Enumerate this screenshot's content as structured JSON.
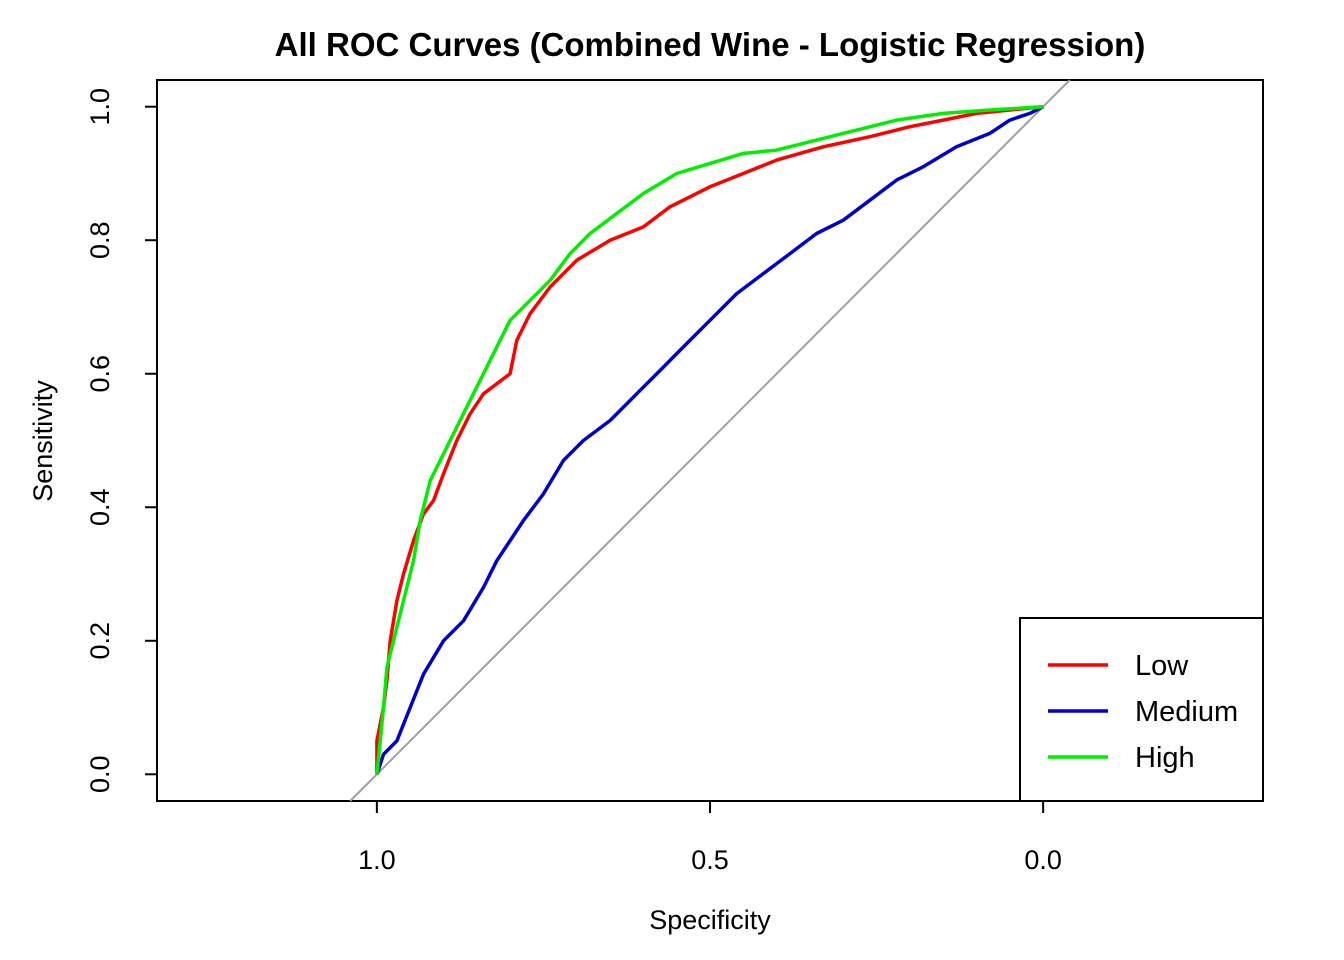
{
  "chart_data": {
    "type": "line",
    "title": "All ROC Curves (Combined Wine - Logistic Regression)",
    "xlabel": "Specificity",
    "ylabel": "Sensitivity",
    "x_reversed": true,
    "xlim": [
      1.33,
      -0.33
    ],
    "ylim": [
      -0.04,
      1.04
    ],
    "x_ticks": [
      1.0,
      0.5,
      0.0
    ],
    "x_tick_labels": [
      "1.0",
      "0.5",
      "0.0"
    ],
    "y_ticks": [
      0.0,
      0.2,
      0.4,
      0.6,
      0.8,
      1.0
    ],
    "y_tick_labels": [
      "0.0",
      "0.2",
      "0.4",
      "0.6",
      "0.8",
      "1.0"
    ],
    "grid": false,
    "legend_position": "bottom-right",
    "reference_line": {
      "color": "#a0a0a0",
      "from": [
        1.0,
        0.0
      ],
      "to": [
        0.0,
        1.0
      ]
    },
    "series": [
      {
        "name": "Low",
        "color": "#ff0000",
        "points": [
          [
            1.0,
            0.0
          ],
          [
            1.0,
            0.05
          ],
          [
            0.99,
            0.1
          ],
          [
            0.985,
            0.14
          ],
          [
            0.98,
            0.2
          ],
          [
            0.97,
            0.26
          ],
          [
            0.96,
            0.3
          ],
          [
            0.945,
            0.35
          ],
          [
            0.93,
            0.39
          ],
          [
            0.915,
            0.41
          ],
          [
            0.9,
            0.45
          ],
          [
            0.88,
            0.5
          ],
          [
            0.86,
            0.54
          ],
          [
            0.84,
            0.57
          ],
          [
            0.8,
            0.6
          ],
          [
            0.79,
            0.65
          ],
          [
            0.77,
            0.69
          ],
          [
            0.74,
            0.73
          ],
          [
            0.7,
            0.77
          ],
          [
            0.65,
            0.8
          ],
          [
            0.6,
            0.82
          ],
          [
            0.56,
            0.85
          ],
          [
            0.5,
            0.88
          ],
          [
            0.45,
            0.9
          ],
          [
            0.4,
            0.92
          ],
          [
            0.33,
            0.94
          ],
          [
            0.26,
            0.955
          ],
          [
            0.2,
            0.97
          ],
          [
            0.15,
            0.98
          ],
          [
            0.1,
            0.99
          ],
          [
            0.05,
            0.995
          ],
          [
            0.0,
            1.0
          ]
        ]
      },
      {
        "name": "Medium",
        "color": "#0000cc",
        "points": [
          [
            1.0,
            0.0
          ],
          [
            0.99,
            0.03
          ],
          [
            0.97,
            0.05
          ],
          [
            0.95,
            0.1
          ],
          [
            0.93,
            0.15
          ],
          [
            0.9,
            0.2
          ],
          [
            0.87,
            0.23
          ],
          [
            0.84,
            0.28
          ],
          [
            0.82,
            0.32
          ],
          [
            0.78,
            0.38
          ],
          [
            0.75,
            0.42
          ],
          [
            0.72,
            0.47
          ],
          [
            0.69,
            0.5
          ],
          [
            0.65,
            0.53
          ],
          [
            0.61,
            0.57
          ],
          [
            0.57,
            0.61
          ],
          [
            0.54,
            0.64
          ],
          [
            0.5,
            0.68
          ],
          [
            0.46,
            0.72
          ],
          [
            0.42,
            0.75
          ],
          [
            0.38,
            0.78
          ],
          [
            0.34,
            0.81
          ],
          [
            0.3,
            0.83
          ],
          [
            0.26,
            0.86
          ],
          [
            0.22,
            0.89
          ],
          [
            0.18,
            0.91
          ],
          [
            0.13,
            0.94
          ],
          [
            0.08,
            0.96
          ],
          [
            0.05,
            0.98
          ],
          [
            0.02,
            0.99
          ],
          [
            0.0,
            1.0
          ]
        ]
      },
      {
        "name": "High",
        "color": "#00ee00",
        "points": [
          [
            1.0,
            0.0
          ],
          [
            0.99,
            0.1
          ],
          [
            0.985,
            0.16
          ],
          [
            0.975,
            0.2
          ],
          [
            0.96,
            0.26
          ],
          [
            0.945,
            0.32
          ],
          [
            0.935,
            0.38
          ],
          [
            0.92,
            0.44
          ],
          [
            0.9,
            0.48
          ],
          [
            0.88,
            0.52
          ],
          [
            0.86,
            0.56
          ],
          [
            0.84,
            0.6
          ],
          [
            0.82,
            0.64
          ],
          [
            0.8,
            0.68
          ],
          [
            0.77,
            0.71
          ],
          [
            0.74,
            0.74
          ],
          [
            0.71,
            0.78
          ],
          [
            0.68,
            0.81
          ],
          [
            0.64,
            0.84
          ],
          [
            0.6,
            0.87
          ],
          [
            0.55,
            0.9
          ],
          [
            0.5,
            0.915
          ],
          [
            0.45,
            0.93
          ],
          [
            0.4,
            0.935
          ],
          [
            0.34,
            0.95
          ],
          [
            0.28,
            0.965
          ],
          [
            0.22,
            0.98
          ],
          [
            0.15,
            0.99
          ],
          [
            0.08,
            0.995
          ],
          [
            0.0,
            1.0
          ]
        ]
      }
    ]
  }
}
